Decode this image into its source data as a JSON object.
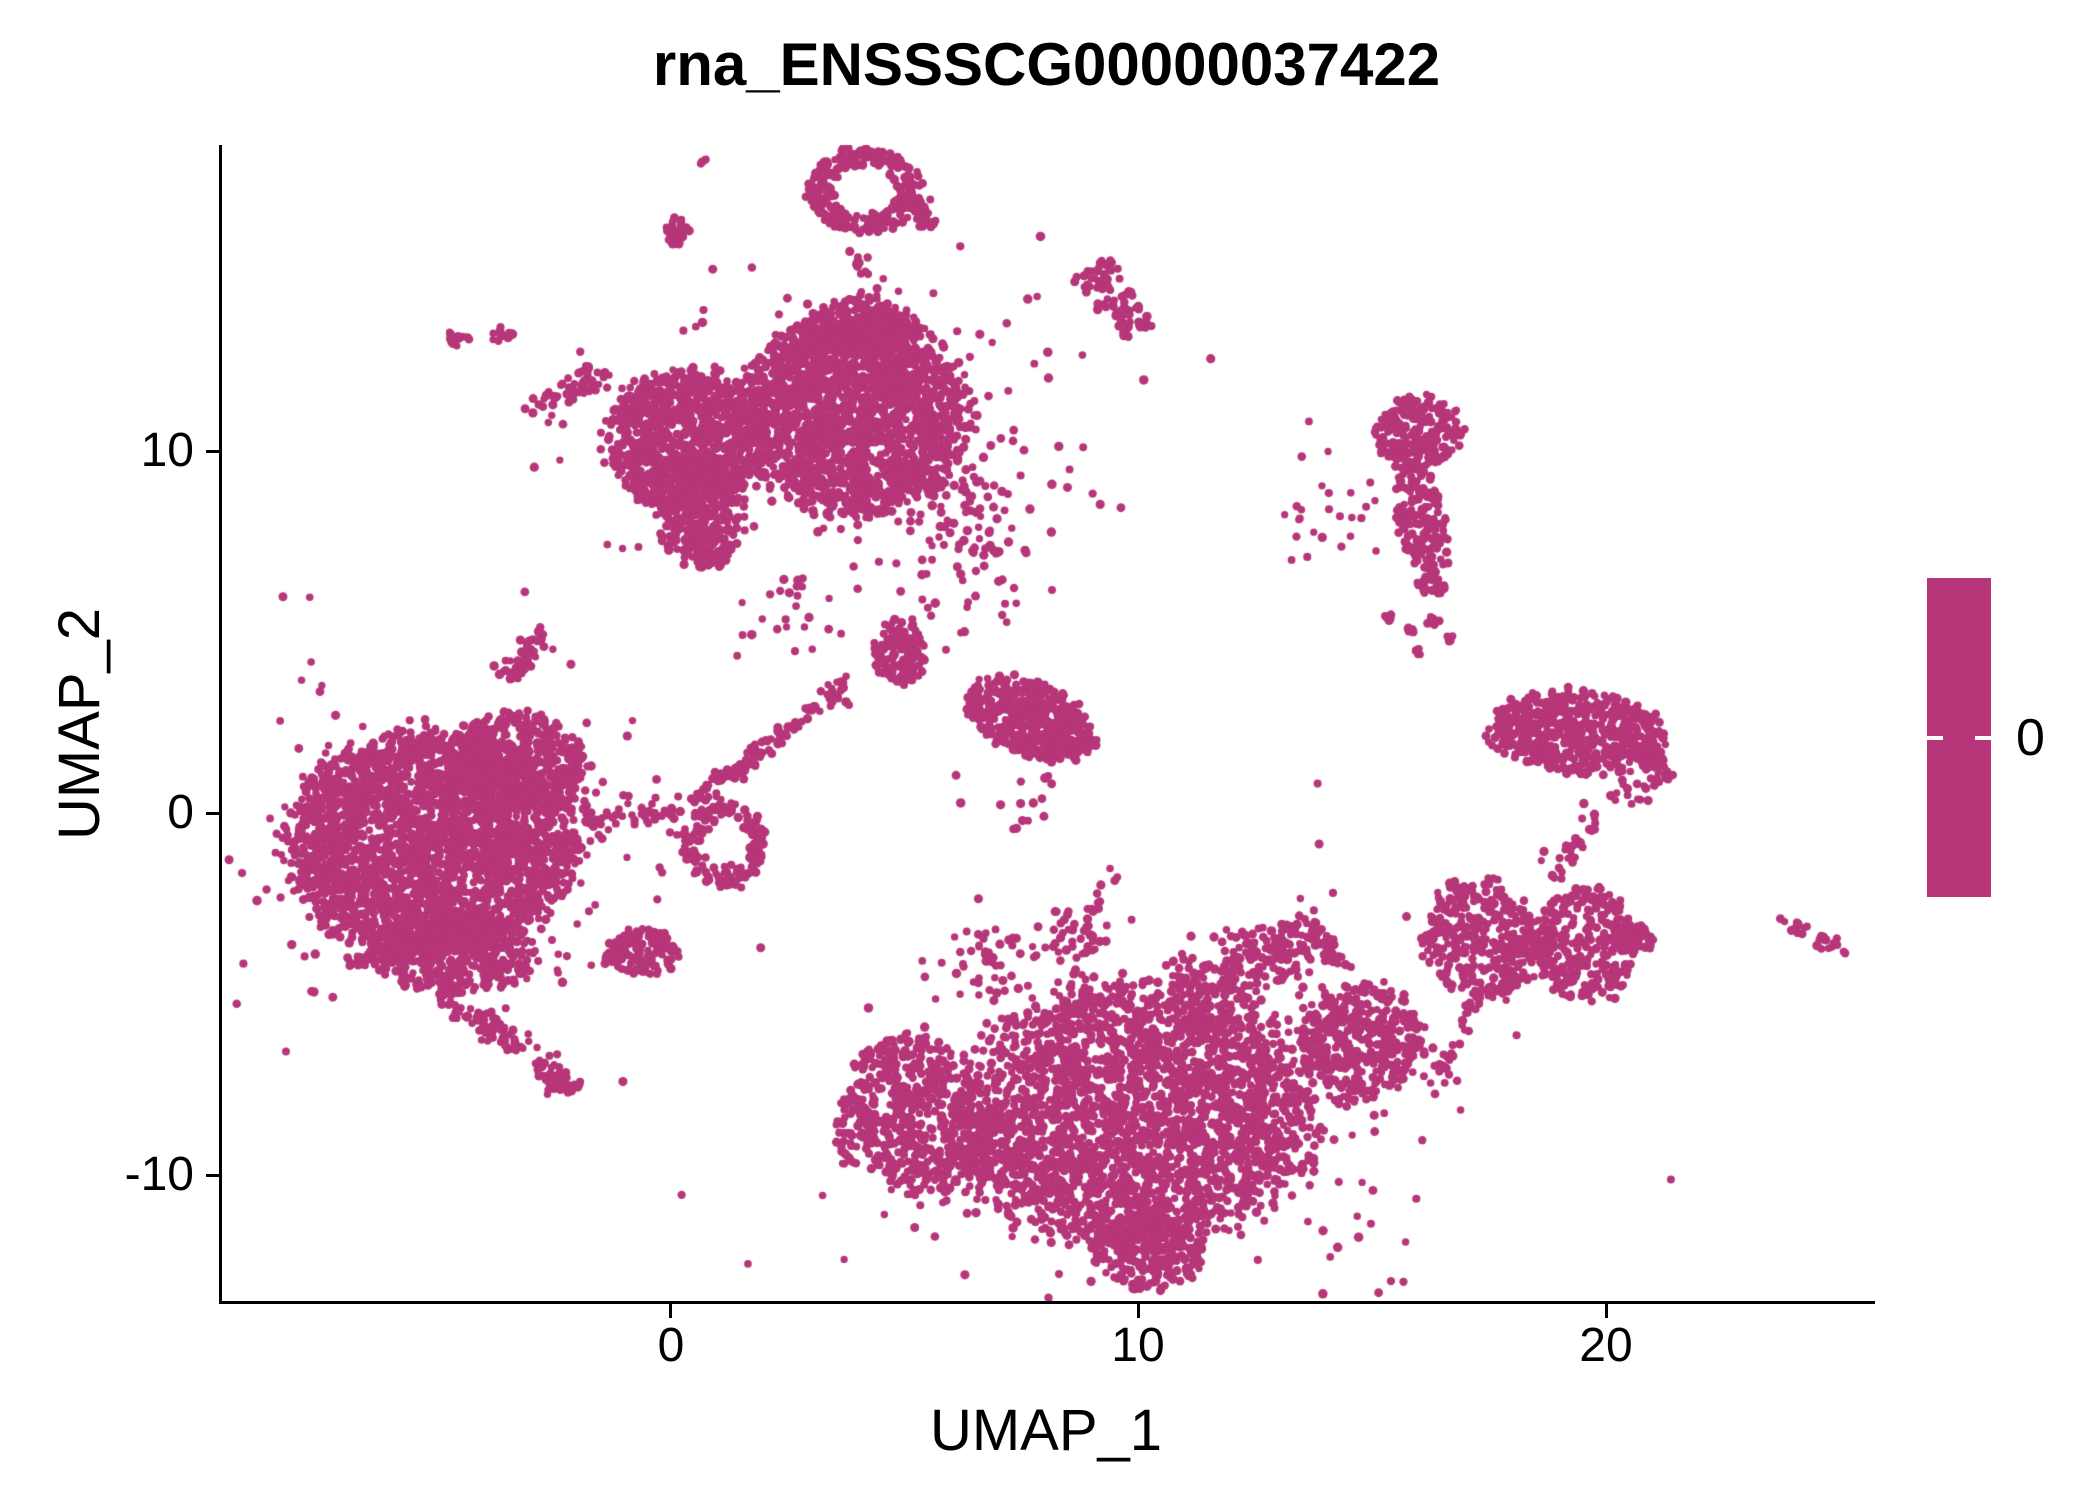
{
  "title": "rna_ENSSSCG00000037422",
  "x_axis": {
    "label": "UMAP_1",
    "ticks": [
      "0",
      "10",
      "20"
    ]
  },
  "y_axis": {
    "label": "UMAP_2",
    "ticks": [
      "10",
      "0",
      "-10"
    ]
  },
  "legend": {
    "tick_label": "0"
  },
  "colors": {
    "point": "#B63679",
    "colorbar": "#B63679",
    "colorbar_tick": "#FFFFFF",
    "axis": "#000000",
    "text": "#000000",
    "background": "#FFFFFF"
  },
  "chart_data": {
    "type": "scatter",
    "title": "rna_ENSSSCG00000037422",
    "xlabel": "UMAP_1",
    "ylabel": "UMAP_2",
    "xlim": [
      -9.6,
      25.68
    ],
    "ylim": [
      -13.55,
      18.45
    ],
    "x_ticks": [
      0,
      10,
      20
    ],
    "y_ticks": [
      -10,
      0,
      10
    ],
    "grid": false,
    "legend_colorbar": {
      "label": "0",
      "value": 0,
      "position": "right"
    },
    "point_color": "#B63679",
    "n_points_approx": 15000,
    "clusters": [
      {
        "name": "dot-a",
        "dist": "fill",
        "cx": 0.73,
        "cy": 17.98,
        "rx": 0.1,
        "ry": 0.1,
        "rot": 0,
        "n": 4
      },
      {
        "name": "blob-b",
        "dist": "fill",
        "cx": 0.15,
        "cy": 16.05,
        "rx": 0.24,
        "ry": 0.38,
        "rot": 0,
        "n": 30
      },
      {
        "name": "ring-c",
        "dist": "ring",
        "cx": 4.15,
        "cy": 17.2,
        "rx": 1.18,
        "ry": 1.15,
        "rot": 0,
        "n": 270
      },
      {
        "name": "tail-c",
        "dist": "line",
        "x1": 4.95,
        "y1": 17.05,
        "x2": 5.65,
        "y2": 16.15,
        "w": 0.12,
        "n": 45
      },
      {
        "name": "blob-d",
        "dist": "line",
        "x1": 9.05,
        "y1": 15.1,
        "x2": 10.0,
        "y2": 13.3,
        "w": 0.24,
        "n": 90
      },
      {
        "name": "dot-e1",
        "dist": "fill",
        "cx": -4.58,
        "cy": 13.12,
        "rx": 0.28,
        "ry": 0.26,
        "rot": 0,
        "n": 16
      },
      {
        "name": "dot-e2",
        "dist": "fill",
        "cx": -3.61,
        "cy": 13.2,
        "rx": 0.26,
        "ry": 0.24,
        "rot": 0,
        "n": 14
      },
      {
        "name": "streak-f",
        "dist": "line",
        "x1": -2.97,
        "y1": 11.05,
        "x2": -1.42,
        "y2": 12.2,
        "w": 0.18,
        "n": 55
      },
      {
        "name": "streak-f2",
        "dist": "line",
        "x1": -3.42,
        "y1": 3.78,
        "x2": -2.6,
        "y2": 5.1,
        "w": 0.16,
        "n": 45
      },
      {
        "name": "central-main",
        "dist": "fill",
        "cx": 3.93,
        "cy": 11.0,
        "rx": 2.35,
        "ry": 2.76,
        "rot": 0,
        "n": 1900
      },
      {
        "name": "central-left",
        "dist": "fill",
        "cx": 0.36,
        "cy": 10.25,
        "rx": 1.67,
        "ry": 1.99,
        "rot": 0,
        "n": 900
      },
      {
        "name": "central-lowleft",
        "dist": "fill",
        "cx": 0.62,
        "cy": 8.37,
        "rx": 0.96,
        "ry": 1.52,
        "rot": 0,
        "n": 330
      },
      {
        "name": "central-tip",
        "dist": "fill",
        "cx": 0.94,
        "cy": 7.07,
        "rx": 0.3,
        "ry": 0.32,
        "rot": 0,
        "n": 30
      },
      {
        "name": "central-top",
        "dist": "fill",
        "cx": 4.04,
        "cy": 13.4,
        "rx": 1.2,
        "ry": 0.8,
        "rot": 0,
        "n": 230
      },
      {
        "name": "central-right-sparse",
        "dist": "gauss",
        "cx": 6.1,
        "cy": 8.6,
        "rx": 0.75,
        "ry": 0.95,
        "rot": 0,
        "n": 70
      },
      {
        "name": "central-halo",
        "dist": "gauss",
        "cx": 3.4,
        "cy": 10.6,
        "rx": 2.9,
        "ry": 2.2,
        "rot": 0,
        "n": 160
      },
      {
        "name": "streak-h",
        "dist": "line",
        "x1": 0.41,
        "y1": 0.25,
        "x2": 3.95,
        "y2": 3.7,
        "w": 0.13,
        "n": 115
      },
      {
        "name": "blob-i",
        "dist": "fill",
        "cx": 4.9,
        "cy": 4.45,
        "rx": 0.56,
        "ry": 0.99,
        "rot": 0,
        "n": 130
      },
      {
        "name": "wedge-j",
        "dist": "fill",
        "cx": 7.72,
        "cy": 2.57,
        "rx": 1.45,
        "ry": 0.95,
        "rot": -38,
        "n": 520
      },
      {
        "name": "sparse-k",
        "dist": "gauss",
        "cx": 6.3,
        "cy": 6.3,
        "rx": 0.85,
        "ry": 0.8,
        "rot": 0,
        "n": 40
      },
      {
        "name": "rm-top",
        "dist": "fill",
        "cx": 16.01,
        "cy": 10.5,
        "rx": 0.95,
        "ry": 1.0,
        "rot": 0,
        "n": 230
      },
      {
        "name": "rm-stem",
        "dist": "fill",
        "cx": 16.06,
        "cy": 8.1,
        "rx": 0.52,
        "ry": 1.55,
        "rot": 8,
        "n": 160
      },
      {
        "name": "rm-tip",
        "dist": "fill",
        "cx": 16.27,
        "cy": 6.3,
        "rx": 0.3,
        "ry": 0.3,
        "rot": 0,
        "n": 25
      },
      {
        "name": "dots-m1",
        "dist": "fill",
        "cx": 15.37,
        "cy": 5.41,
        "rx": 0.14,
        "ry": 0.12,
        "rot": 0,
        "n": 6
      },
      {
        "name": "dots-m2",
        "dist": "fill",
        "cx": 15.86,
        "cy": 5.03,
        "rx": 0.13,
        "ry": 0.12,
        "rot": 0,
        "n": 5
      },
      {
        "name": "dots-m3",
        "dist": "fill",
        "cx": 16.29,
        "cy": 5.3,
        "rx": 0.14,
        "ry": 0.12,
        "rot": 0,
        "n": 6
      },
      {
        "name": "dots-m4",
        "dist": "fill",
        "cx": 16.7,
        "cy": 4.81,
        "rx": 0.14,
        "ry": 0.13,
        "rot": 0,
        "n": 6
      },
      {
        "name": "dots-m5",
        "dist": "fill",
        "cx": 15.99,
        "cy": 4.45,
        "rx": 0.12,
        "ry": 0.11,
        "rot": 0,
        "n": 5
      },
      {
        "name": "right-band",
        "dist": "fill",
        "cx": 19.39,
        "cy": 2.24,
        "rx": 1.9,
        "ry": 1.15,
        "rot": -8,
        "n": 560
      },
      {
        "name": "right-band-tail",
        "dist": "line",
        "x1": 20.7,
        "y1": 1.85,
        "x2": 21.28,
        "y2": 0.9,
        "w": 0.13,
        "n": 35
      },
      {
        "name": "left-main",
        "dist": "fill",
        "cx": -5.11,
        "cy": -0.88,
        "rx": 3.05,
        "ry": 3.1,
        "rot": 0,
        "n": 2600
      },
      {
        "name": "left-toplobe",
        "dist": "fill",
        "cx": -3.23,
        "cy": 1.41,
        "rx": 1.5,
        "ry": 1.35,
        "rot": -20,
        "n": 480
      },
      {
        "name": "left-bottom",
        "dist": "fill",
        "cx": -4.62,
        "cy": -3.84,
        "rx": 1.75,
        "ry": 1.18,
        "rot": 0,
        "n": 430
      },
      {
        "name": "left-neck",
        "dist": "line",
        "x1": -1.84,
        "y1": -0.15,
        "x2": 0.3,
        "y2": 0.1,
        "w": 0.22,
        "n": 50
      },
      {
        "name": "left-tail1",
        "dist": "line",
        "x1": -4.83,
        "y1": -5.0,
        "x2": -3.23,
        "y2": -6.6,
        "w": 0.16,
        "n": 65
      },
      {
        "name": "left-tail2",
        "dist": "line",
        "x1": -2.82,
        "y1": -6.85,
        "x2": -2.1,
        "y2": -7.68,
        "w": 0.19,
        "n": 55
      },
      {
        "name": "left-tinyblob",
        "dist": "fill",
        "cx": -6.71,
        "cy": -4.12,
        "rx": 0.26,
        "ry": 0.2,
        "rot": 0,
        "n": 14
      },
      {
        "name": "left-dot1",
        "dist": "fill",
        "cx": -6.35,
        "cy": -3.5,
        "rx": 0.08,
        "ry": 0.08,
        "rot": 0,
        "n": 3
      },
      {
        "name": "left-dot2",
        "dist": "fill",
        "cx": -6.03,
        "cy": -4.14,
        "rx": 0.09,
        "ry": 0.09,
        "rot": 0,
        "n": 3
      },
      {
        "name": "left-dot3",
        "dist": "fill",
        "cx": -7.67,
        "cy": -4.95,
        "rx": 0.07,
        "ry": 0.07,
        "rot": 0,
        "n": 2
      },
      {
        "name": "left-halo",
        "dist": "gauss",
        "cx": -4.9,
        "cy": -0.6,
        "rx": 2.6,
        "ry": 2.6,
        "rot": 0,
        "n": 200
      },
      {
        "name": "ring-p2",
        "dist": "ring",
        "cx": 1.15,
        "cy": -0.88,
        "rx": 0.88,
        "ry": 1.18,
        "rot": 0,
        "n": 160
      },
      {
        "name": "arrow-p",
        "dist": "fill",
        "cx": -0.56,
        "cy": -3.84,
        "rx": 0.75,
        "ry": 0.62,
        "rot": -12,
        "n": 115
      },
      {
        "name": "arrow-p-tip",
        "dist": "fill",
        "cx": -1.3,
        "cy": -4.05,
        "rx": 0.18,
        "ry": 0.14,
        "rot": 0,
        "n": 8
      },
      {
        "name": "bottom-main",
        "dist": "fill",
        "cx": 9.92,
        "cy": -8.35,
        "rx": 3.75,
        "ry": 3.6,
        "rot": 0,
        "n": 2550
      },
      {
        "name": "bottom-hook-top",
        "dist": "fill",
        "cx": 5.0,
        "cy": -7.05,
        "rx": 1.05,
        "ry": 0.85,
        "rot": 15,
        "n": 180
      },
      {
        "name": "bottom-hook-body",
        "dist": "fill",
        "cx": 5.64,
        "cy": -9.15,
        "rx": 1.35,
        "ry": 1.5,
        "rot": 0,
        "n": 340
      },
      {
        "name": "bottom-left-tip",
        "dist": "fill",
        "cx": 4.0,
        "cy": -8.7,
        "rx": 0.5,
        "ry": 1.1,
        "rot": 0,
        "n": 85
      },
      {
        "name": "bottom-tip",
        "dist": "fill",
        "cx": 10.24,
        "cy": -12.2,
        "rx": 1.2,
        "ry": 1.05,
        "rot": 0,
        "n": 230
      },
      {
        "name": "bottom-right-lobe",
        "dist": "fill",
        "cx": 14.73,
        "cy": -6.3,
        "rx": 1.35,
        "ry": 1.6,
        "rot": 0,
        "n": 420
      },
      {
        "name": "bottom-arm",
        "dist": "line",
        "x1": 10.9,
        "y1": -5.15,
        "x2": 14.05,
        "y2": -3.25,
        "w": 0.5,
        "n": 270
      },
      {
        "name": "bottom-top-sparse1",
        "dist": "gauss",
        "cx": 7.0,
        "cy": -4.2,
        "rx": 0.6,
        "ry": 0.55,
        "rot": 0,
        "n": 45
      },
      {
        "name": "bottom-top-sparse2",
        "dist": "gauss",
        "cx": 8.3,
        "cy": -3.4,
        "rx": 0.5,
        "ry": 0.45,
        "rot": 0,
        "n": 30
      },
      {
        "name": "bottom-chain",
        "dist": "line",
        "x1": 8.95,
        "y1": -3.8,
        "x2": 9.4,
        "y2": -1.6,
        "w": 0.14,
        "n": 22
      },
      {
        "name": "bottom-halo",
        "dist": "gauss",
        "cx": 10,
        "cy": -8,
        "rx": 3.5,
        "ry": 2.8,
        "rot": 0,
        "n": 220
      },
      {
        "name": "rb1",
        "dist": "fill",
        "cx": 17.3,
        "cy": -3.5,
        "rx": 1.2,
        "ry": 1.7,
        "rot": 10,
        "n": 330
      },
      {
        "name": "rb1-trail",
        "dist": "line",
        "x1": 17.2,
        "y1": -5.2,
        "x2": 16.35,
        "y2": -7.5,
        "w": 0.18,
        "n": 25
      },
      {
        "name": "chain-rn",
        "dist": "line",
        "x1": 18.7,
        "y1": -1.8,
        "x2": 19.9,
        "y2": 0.1,
        "w": 0.2,
        "n": 30
      },
      {
        "name": "chain-rn2",
        "dist": "line",
        "x1": 20.1,
        "y1": 0.3,
        "x2": 21.2,
        "y2": 0.85,
        "w": 0.18,
        "n": 18
      },
      {
        "name": "rb2",
        "dist": "fill",
        "cx": 19.54,
        "cy": -3.65,
        "rx": 1.1,
        "ry": 1.6,
        "rot": 0,
        "n": 300
      },
      {
        "name": "rb2-tip",
        "dist": "fill",
        "cx": 20.6,
        "cy": -3.5,
        "rx": 0.45,
        "ry": 0.4,
        "rot": 0,
        "n": 40
      },
      {
        "name": "rb-bridge",
        "dist": "gauss",
        "cx": 18.5,
        "cy": -3.6,
        "rx": 0.3,
        "ry": 0.3,
        "rot": 0,
        "n": 14
      },
      {
        "name": "far-right1",
        "dist": "fill",
        "cx": 24.13,
        "cy": -3.2,
        "rx": 0.22,
        "ry": 0.2,
        "rot": 0,
        "n": 10
      },
      {
        "name": "far-right2",
        "dist": "fill",
        "cx": 24.71,
        "cy": -3.6,
        "rx": 0.26,
        "ry": 0.24,
        "rot": 0,
        "n": 13
      },
      {
        "name": "far-right-d1",
        "dist": "fill",
        "cx": 25.1,
        "cy": -3.85,
        "rx": 0.08,
        "ry": 0.08,
        "rot": 0,
        "n": 2
      },
      {
        "name": "far-right-d0",
        "dist": "fill",
        "cx": 23.8,
        "cy": -2.95,
        "rx": 0.08,
        "ry": 0.08,
        "rot": 0,
        "n": 2
      },
      {
        "name": "sparse-u",
        "dist": "gauss",
        "cx": 13.9,
        "cy": 8.1,
        "rx": 0.7,
        "ry": 0.8,
        "rot": 0,
        "n": 26
      },
      {
        "name": "chain-w",
        "dist": "line",
        "x1": 4.05,
        "y1": 15.65,
        "x2": 4.3,
        "y2": 13.95,
        "w": 0.12,
        "n": 18
      },
      {
        "name": "sparse-g-bottom",
        "dist": "gauss",
        "cx": 2.5,
        "cy": 5.5,
        "rx": 0.6,
        "ry": 0.7,
        "rot": 0,
        "n": 22
      },
      {
        "name": "sparse-j-below",
        "dist": "gauss",
        "cx": 7.6,
        "cy": 0.2,
        "rx": 0.45,
        "ry": 0.6,
        "rot": 0,
        "n": 14
      }
    ]
  }
}
